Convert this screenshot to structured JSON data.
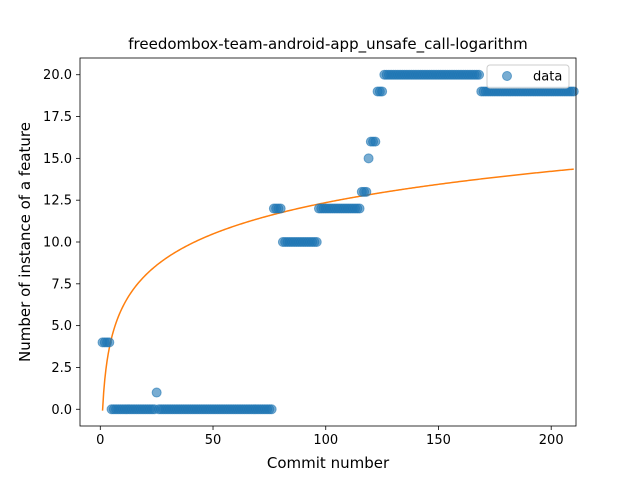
{
  "chart_data": {
    "type": "scatter",
    "title": "freedombox-team-android-app_unsafe_call-logarithm",
    "xlabel": "Commit number",
    "ylabel": "Number of instance of a feature",
    "xlim": [
      -9,
      211
    ],
    "ylim": [
      -1,
      21
    ],
    "xticks": [
      0,
      50,
      100,
      150,
      200
    ],
    "yticks": [
      0.0,
      2.5,
      5.0,
      7.5,
      10.0,
      12.5,
      15.0,
      17.5,
      20.0
    ],
    "ytick_labels": [
      "0.0",
      "2.5",
      "5.0",
      "7.5",
      "10.0",
      "12.5",
      "15.0",
      "17.5",
      "20.0"
    ],
    "legend": {
      "position": "top-right",
      "entries": [
        "data"
      ]
    },
    "colors": {
      "data": "#1f77b4",
      "fit": "#ff7f0e"
    },
    "series": [
      {
        "name": "data",
        "kind": "scatter",
        "segments": [
          {
            "from": 1,
            "to": 4,
            "value": 4
          },
          {
            "from": 5,
            "to": 24,
            "value": 0
          },
          {
            "from": 25,
            "to": 25,
            "value": 1
          },
          {
            "from": 26,
            "to": 76,
            "value": 0
          },
          {
            "from": 77,
            "to": 80,
            "value": 12
          },
          {
            "from": 81,
            "to": 96,
            "value": 10
          },
          {
            "from": 97,
            "to": 115,
            "value": 12
          },
          {
            "from": 116,
            "to": 118,
            "value": 13
          },
          {
            "from": 119,
            "to": 119,
            "value": 15
          },
          {
            "from": 120,
            "to": 122,
            "value": 16
          },
          {
            "from": 123,
            "to": 125,
            "value": 19
          },
          {
            "from": 126,
            "to": 168,
            "value": 20
          },
          {
            "from": 169,
            "to": 210,
            "value": 19
          }
        ]
      },
      {
        "name": "logarithmic fit",
        "kind": "line",
        "model": "a*ln(x)+b",
        "a": 2.7,
        "b": -0.08,
        "x_range": [
          1,
          210
        ]
      }
    ]
  }
}
